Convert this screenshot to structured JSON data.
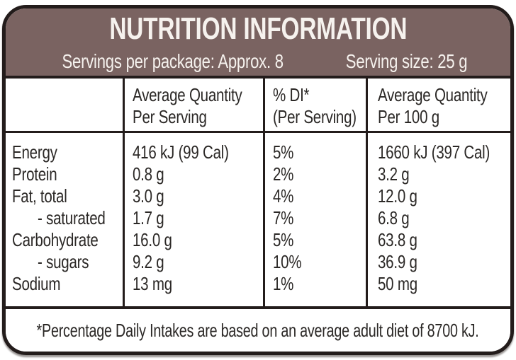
{
  "colors": {
    "header_bg": "#7a6361",
    "border": "#231c1b",
    "text_light": "#f6f2ee",
    "text_dark": "#2b2826"
  },
  "header": {
    "title": "NUTRITION INFORMATION",
    "servings_per_package": "Servings per package: Approx. 8",
    "serving_size": "Serving size: 25 g"
  },
  "table": {
    "columns": [
      {
        "line1": "",
        "line2": ""
      },
      {
        "line1": "Average Quantity",
        "line2": "Per Serving"
      },
      {
        "line1": "% DI*",
        "line2": "(Per Serving)"
      },
      {
        "line1": "Average Quantity",
        "line2": "Per 100 g"
      }
    ],
    "rows": [
      {
        "name": "Energy",
        "per_serving": "416 kJ (99 Cal)",
        "di": "5%",
        "per_100g": "1660 kJ (397 Cal)"
      },
      {
        "name": "Protein",
        "per_serving": "0.8 g",
        "di": "2%",
        "per_100g": "3.2 g"
      },
      {
        "name": "Fat, total",
        "per_serving": "3.0 g",
        "di": "4%",
        "per_100g": "12.0 g"
      },
      {
        "name": "- saturated",
        "per_serving": "1.7 g",
        "di": "7%",
        "per_100g": "6.8 g"
      },
      {
        "name": "Carbohydrate",
        "per_serving": "16.0 g",
        "di": "5%",
        "per_100g": "63.8 g"
      },
      {
        "name": "- sugars",
        "per_serving": "9.2 g",
        "di": "10%",
        "per_100g": "36.9 g"
      },
      {
        "name": "Sodium",
        "per_serving": "13 mg",
        "di": "1%",
        "per_100g": "50 mg"
      }
    ]
  },
  "footnote": "*Percentage Daily Intakes are based on an average adult diet of 8700 kJ."
}
